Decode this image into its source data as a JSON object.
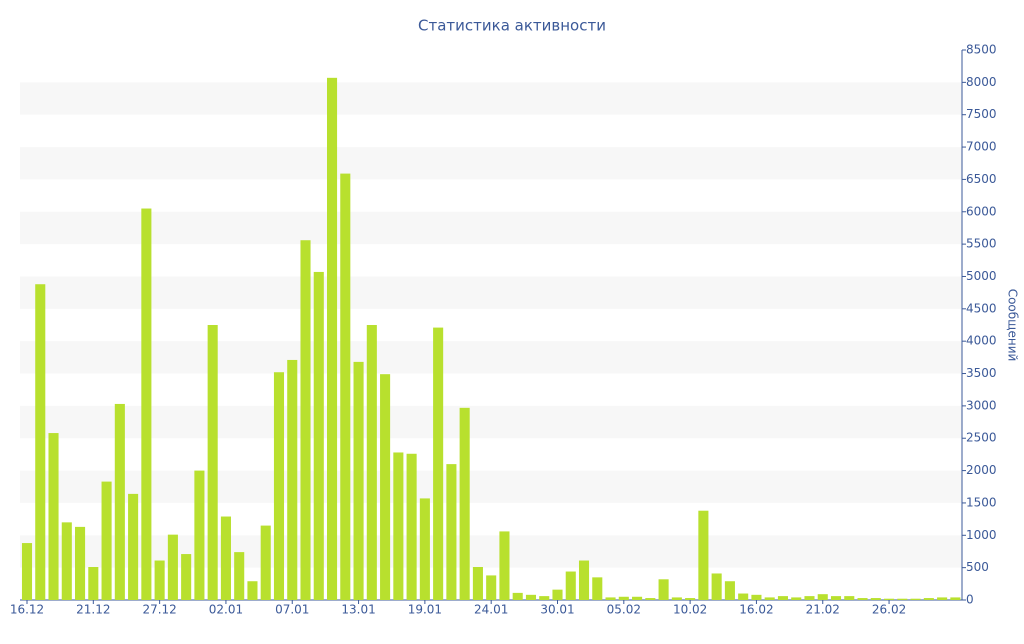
{
  "chart_data": {
    "type": "bar",
    "title": "Статистика активности",
    "y_label": "Сообщений",
    "categories": [
      "16.12",
      null,
      null,
      null,
      null,
      "21.12",
      null,
      null,
      null,
      null,
      "27.12",
      null,
      null,
      null,
      null,
      "02.01",
      null,
      null,
      null,
      null,
      "07.01",
      null,
      null,
      null,
      null,
      "13.01",
      null,
      null,
      null,
      null,
      "19.01",
      null,
      null,
      null,
      null,
      "24.01",
      null,
      null,
      null,
      null,
      "30.01",
      null,
      null,
      null,
      null,
      "05.02",
      null,
      null,
      null,
      null,
      "10.02",
      null,
      null,
      null,
      null,
      "16.02",
      null,
      null,
      null,
      null,
      "21.02",
      null,
      null,
      null,
      null,
      "26.02",
      null,
      null,
      null,
      null,
      null
    ],
    "values": [
      880,
      4880,
      2580,
      1200,
      1130,
      510,
      1830,
      3030,
      1640,
      6050,
      610,
      1010,
      710,
      2000,
      4250,
      1290,
      740,
      290,
      1150,
      3520,
      3710,
      5560,
      5070,
      8070,
      6590,
      3680,
      4250,
      3490,
      2280,
      2260,
      1570,
      4210,
      2100,
      2970,
      510,
      380,
      1060,
      110,
      80,
      60,
      160,
      440,
      610,
      350,
      40,
      50,
      50,
      30,
      320,
      40,
      30,
      1380,
      410,
      290,
      100,
      80,
      40,
      60,
      40,
      60,
      90,
      60,
      60,
      30,
      30,
      20,
      20,
      20,
      30,
      40,
      40
    ],
    "color": "#b8e02e",
    "ylim": [
      0,
      8500
    ],
    "yticks": [
      0,
      500,
      1000,
      1500,
      2000,
      2500,
      3000,
      3500,
      4000,
      4500,
      5000,
      5500,
      6000,
      6500,
      7000,
      7500,
      8000,
      8500
    ],
    "grid": "bands"
  }
}
